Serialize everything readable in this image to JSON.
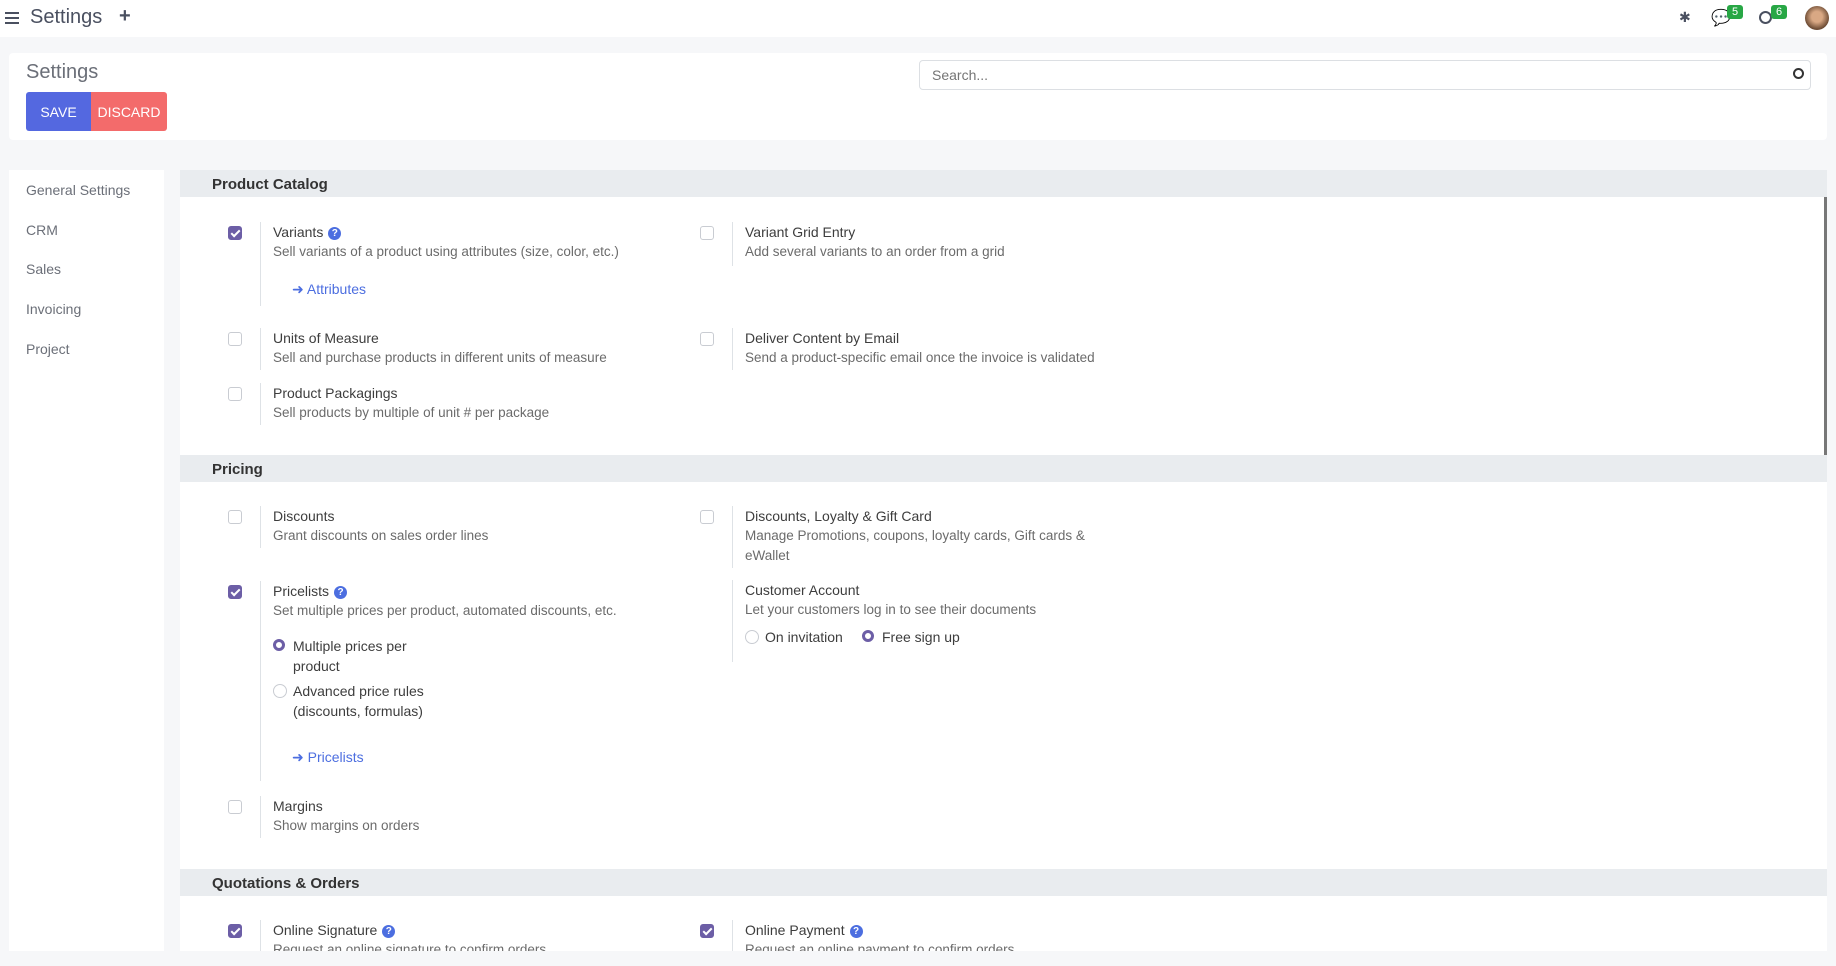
{
  "topbar": {
    "title": "Settings",
    "messages_count": "5",
    "activities_count": "6"
  },
  "control_panel": {
    "title": "Settings",
    "save": "SAVE",
    "discard": "DISCARD",
    "search_placeholder": "Search..."
  },
  "sidebar": {
    "items": [
      {
        "label": "General Settings"
      },
      {
        "label": "CRM"
      },
      {
        "label": "Sales"
      },
      {
        "label": "Invoicing"
      },
      {
        "label": "Project"
      }
    ]
  },
  "sections": {
    "product_catalog": {
      "title": "Product Catalog",
      "variants": {
        "title": "Variants",
        "desc": "Sell variants of a product using attributes (size, color, etc.)",
        "link": "Attributes",
        "checked": true
      },
      "variant_grid": {
        "title": "Variant Grid Entry",
        "desc": "Add several variants to an order from a grid",
        "checked": false
      },
      "uom": {
        "title": "Units of Measure",
        "desc": "Sell and purchase products in different units of measure",
        "checked": false
      },
      "deliver_email": {
        "title": "Deliver Content by Email",
        "desc": "Send a product-specific email once the invoice is validated",
        "checked": false
      },
      "packagings": {
        "title": "Product Packagings",
        "desc": "Sell products by multiple of unit # per package",
        "checked": false
      }
    },
    "pricing": {
      "title": "Pricing",
      "discounts": {
        "title": "Discounts",
        "desc": "Grant discounts on sales order lines",
        "checked": false
      },
      "loyalty": {
        "title": "Discounts, Loyalty & Gift Card",
        "desc": "Manage Promotions, coupons, loyalty cards, Gift cards & eWallet",
        "checked": false
      },
      "pricelists": {
        "title": "Pricelists",
        "desc": "Set multiple prices per product, automated discounts, etc.",
        "checked": true,
        "option1": "Multiple prices per product",
        "option2": "Advanced price rules (discounts, formulas)",
        "selected": "Multiple prices per product",
        "link": "Pricelists"
      },
      "customer_account": {
        "title": "Customer Account",
        "desc": "Let your customers log in to see their documents",
        "option1": "On invitation",
        "option2": "Free sign up",
        "selected": "Free sign up"
      },
      "margins": {
        "title": "Margins",
        "desc": "Show margins on orders",
        "checked": false
      }
    },
    "quotations": {
      "title": "Quotations & Orders",
      "signature": {
        "title": "Online Signature",
        "desc": "Request an online signature to confirm orders",
        "checked": true
      },
      "payment": {
        "title": "Online Payment",
        "desc": "Request an online payment to confirm orders",
        "checked": true
      }
    }
  }
}
